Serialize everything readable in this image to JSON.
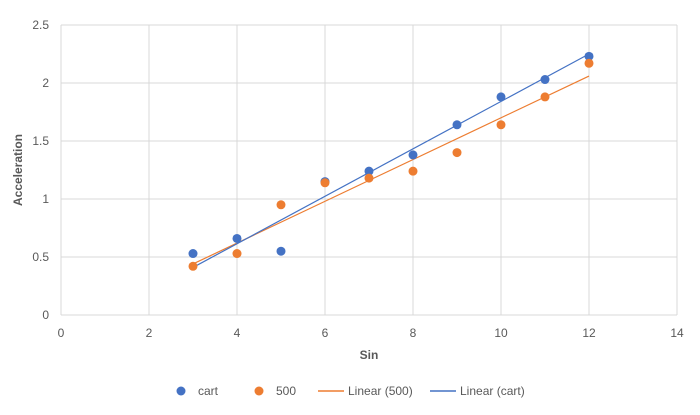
{
  "chart_data": {
    "type": "scatter",
    "xlabel": "Sin",
    "ylabel": "Acceleration",
    "xlim": [
      0,
      14
    ],
    "ylim": [
      0,
      2.5
    ],
    "x_ticks": [
      "0",
      "2",
      "4",
      "6",
      "8",
      "10",
      "12",
      "14"
    ],
    "y_ticks": [
      "0",
      "0.5",
      "1",
      "1.5",
      "2",
      "2.5"
    ],
    "grid": true,
    "legend_position": "bottom",
    "series": [
      {
        "name": "cart",
        "color": "#4472C4",
        "points": [
          {
            "x": 3,
            "y": 0.53
          },
          {
            "x": 4,
            "y": 0.66
          },
          {
            "x": 5,
            "y": 0.55
          },
          {
            "x": 6,
            "y": 1.15
          },
          {
            "x": 7,
            "y": 1.24
          },
          {
            "x": 8,
            "y": 1.38
          },
          {
            "x": 9,
            "y": 1.64
          },
          {
            "x": 10,
            "y": 1.88
          },
          {
            "x": 11,
            "y": 2.03
          },
          {
            "x": 12,
            "y": 2.23
          }
        ]
      },
      {
        "name": "500",
        "color": "#ED7D31",
        "points": [
          {
            "x": 3,
            "y": 0.42
          },
          {
            "x": 4,
            "y": 0.53
          },
          {
            "x": 5,
            "y": 0.95
          },
          {
            "x": 6,
            "y": 1.14
          },
          {
            "x": 7,
            "y": 1.18
          },
          {
            "x": 8,
            "y": 1.24
          },
          {
            "x": 9,
            "y": 1.4
          },
          {
            "x": 10,
            "y": 1.64
          },
          {
            "x": 11,
            "y": 1.88
          },
          {
            "x": 12,
            "y": 2.17
          }
        ]
      }
    ],
    "trendlines": [
      {
        "name": "Linear (500)",
        "color": "#ED7D31",
        "from": {
          "x": 3,
          "y": 0.44
        },
        "to": {
          "x": 12,
          "y": 2.06
        }
      },
      {
        "name": "Linear (cart)",
        "color": "#4472C4",
        "from": {
          "x": 3,
          "y": 0.41
        },
        "to": {
          "x": 12,
          "y": 2.25
        }
      }
    ],
    "legend": [
      {
        "label": "cart",
        "kind": "marker",
        "color": "#4472C4"
      },
      {
        "label": "500",
        "kind": "marker",
        "color": "#ED7D31"
      },
      {
        "label": "Linear (500)",
        "kind": "line",
        "color": "#ED7D31"
      },
      {
        "label": "Linear (cart)",
        "kind": "line",
        "color": "#4472C4"
      }
    ]
  }
}
